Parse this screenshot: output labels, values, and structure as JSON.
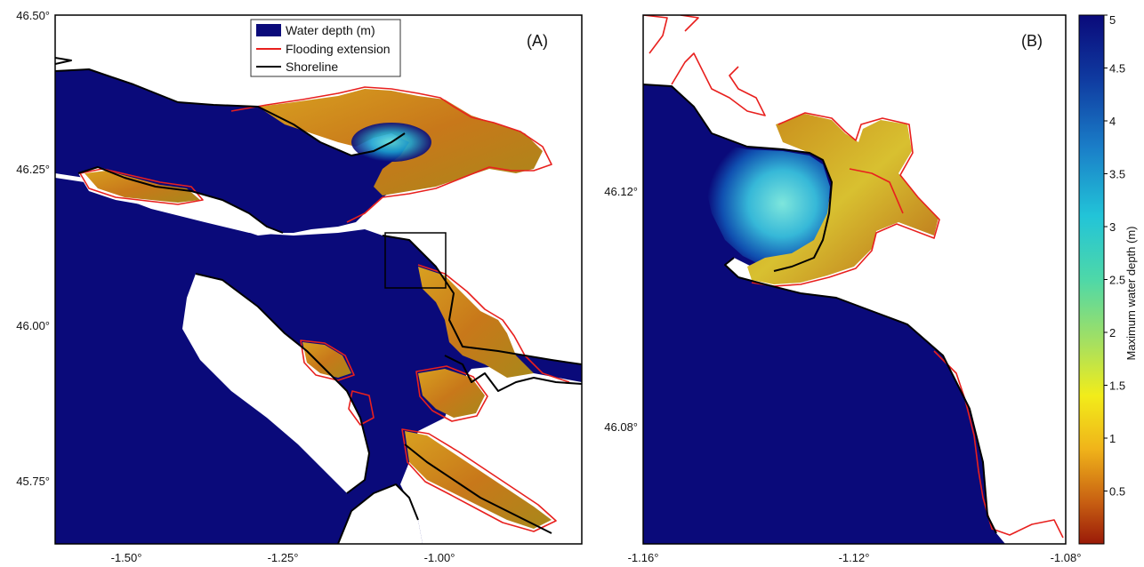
{
  "panels": {
    "a": {
      "label": "(A)",
      "lat_ticks": [
        "46.50°",
        "46.25°",
        "46.00°",
        "45.75°"
      ],
      "lon_ticks": [
        "-1.50°",
        "-1.25°",
        "-1.00°"
      ]
    },
    "b": {
      "label": "(B)",
      "lat_ticks": [
        "46.12°",
        "46.08°"
      ],
      "lon_ticks": [
        "-1.16°",
        "-1.12°",
        "-1.08°"
      ]
    }
  },
  "legend": {
    "water_depth": "Water depth (m)",
    "flooding": "Flooding extension",
    "shoreline": "Shoreline"
  },
  "colorbar": {
    "title": "Maximum water depth (m)",
    "ticks": [
      "5",
      "4.5",
      "4",
      "3.5",
      "3",
      "2.5",
      "2",
      "1.5",
      "1",
      "0.5"
    ],
    "min": 0,
    "max": 5
  },
  "colors": {
    "deep_water": "#0a0a7a",
    "flood_outline": "#e8201e",
    "shoreline": "#000000"
  }
}
